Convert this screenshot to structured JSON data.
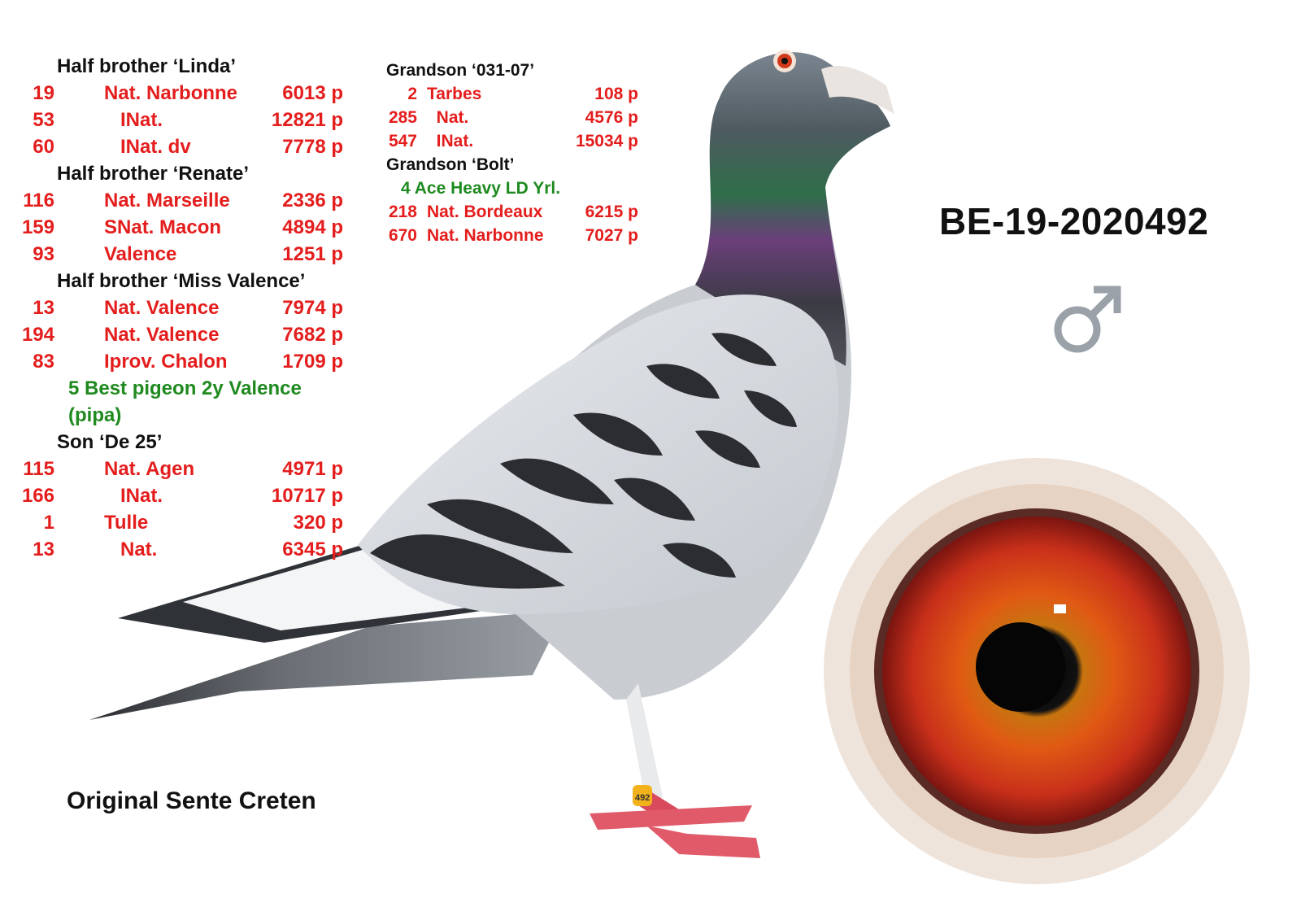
{
  "ring_number": "BE-19-2020492",
  "sex_symbol": "♂",
  "origin": "Original Sente Creten",
  "leg_ring_text": "492",
  "colors": {
    "results_red": "#e41d1d",
    "highlight_green": "#1f8a1f",
    "heading_black": "#111111",
    "eye_iris": "#d2381a"
  },
  "column_left": [
    {
      "heading": "Half brother ‘Linda’",
      "rows": [
        {
          "rank": "19",
          "race": "Nat. Narbonne",
          "birds": "6013 p"
        },
        {
          "rank": "53",
          "race": "   INat.",
          "birds": "12821 p"
        },
        {
          "rank": "60",
          "race": "   INat. dv",
          "birds": "7778 p"
        }
      ]
    },
    {
      "heading": "Half brother ‘Renate’",
      "rows": [
        {
          "rank": "116",
          "race": "Nat. Marseille",
          "birds": "2336 p"
        },
        {
          "rank": "159",
          "race": "SNat. Macon",
          "birds": "4894 p"
        },
        {
          "rank": "93",
          "race": "Valence",
          "birds": "1251 p"
        }
      ]
    },
    {
      "heading": "Half brother ‘Miss Valence’",
      "rows": [
        {
          "rank": "13",
          "race": "Nat. Valence",
          "birds": "7974 p"
        },
        {
          "rank": "194",
          "race": "Nat. Valence",
          "birds": "7682 p"
        },
        {
          "rank": "83",
          "race": "Iprov. Chalon",
          "birds": "1709 p"
        }
      ],
      "note": "5 Best pigeon 2y Valence (pipa)"
    },
    {
      "heading": "Son ‘De 25’",
      "rows": [
        {
          "rank": "115",
          "race": "Nat. Agen",
          "birds": "4971 p"
        },
        {
          "rank": "166",
          "race": "   INat.",
          "birds": "10717 p"
        },
        {
          "rank": "1",
          "race": "Tulle",
          "birds": "320 p"
        },
        {
          "rank": "13",
          "race": "   Nat.",
          "birds": "6345 p"
        }
      ]
    }
  ],
  "column_right": [
    {
      "heading": "Grandson ‘031-07’",
      "rows": [
        {
          "rank": "2",
          "race": "Tarbes",
          "birds": "108 p"
        },
        {
          "rank": "285",
          "race": "  Nat.",
          "birds": "4576 p"
        },
        {
          "rank": "547",
          "race": "  INat.",
          "birds": "15034 p"
        }
      ]
    },
    {
      "heading": "Grandson ‘Bolt’",
      "note": "4 Ace Heavy LD Yrl.",
      "rows": [
        {
          "rank": "218",
          "race": "Nat. Bordeaux",
          "birds": "6215 p"
        },
        {
          "rank": "670",
          "race": "Nat. Narbonne",
          "birds": "7027 p"
        }
      ]
    }
  ]
}
